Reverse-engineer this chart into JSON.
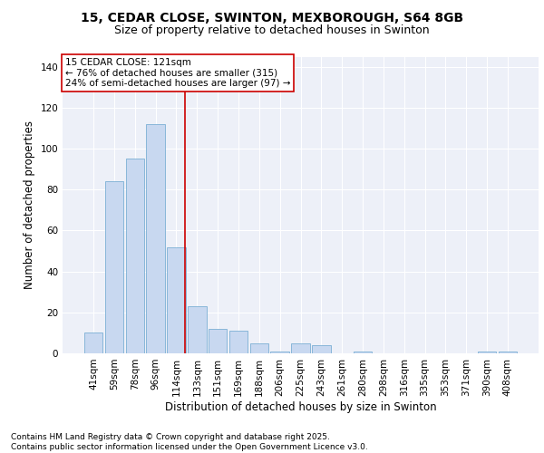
{
  "title_line1": "15, CEDAR CLOSE, SWINTON, MEXBOROUGH, S64 8GB",
  "title_line2": "Size of property relative to detached houses in Swinton",
  "xlabel": "Distribution of detached houses by size in Swinton",
  "ylabel": "Number of detached properties",
  "footer_line1": "Contains HM Land Registry data © Crown copyright and database right 2025.",
  "footer_line2": "Contains public sector information licensed under the Open Government Licence v3.0.",
  "annotation_title": "15 CEDAR CLOSE: 121sqm",
  "annotation_line1": "← 76% of detached houses are smaller (315)",
  "annotation_line2": "24% of semi-detached houses are larger (97) →",
  "categories": [
    "41sqm",
    "59sqm",
    "78sqm",
    "96sqm",
    "114sqm",
    "133sqm",
    "151sqm",
    "169sqm",
    "188sqm",
    "206sqm",
    "225sqm",
    "243sqm",
    "261sqm",
    "280sqm",
    "298sqm",
    "316sqm",
    "335sqm",
    "353sqm",
    "371sqm",
    "390sqm",
    "408sqm"
  ],
  "values": [
    10,
    84,
    95,
    112,
    52,
    23,
    12,
    11,
    5,
    1,
    5,
    4,
    0,
    1,
    0,
    0,
    0,
    0,
    0,
    1,
    1
  ],
  "bar_color": "#c8d8f0",
  "bar_edge_color": "#7bafd4",
  "property_line_color": "#cc0000",
  "annotation_box_color": "#cc0000",
  "background_color": "#edf0f8",
  "ylim": [
    0,
    145
  ],
  "yticks": [
    0,
    20,
    40,
    60,
    80,
    100,
    120,
    140
  ],
  "grid_color": "#ffffff",
  "title_fontsize": 10,
  "subtitle_fontsize": 9,
  "axis_label_fontsize": 8.5,
  "tick_fontsize": 7.5,
  "annotation_fontsize": 7.5,
  "footer_fontsize": 6.5,
  "property_line_x": 4.425
}
